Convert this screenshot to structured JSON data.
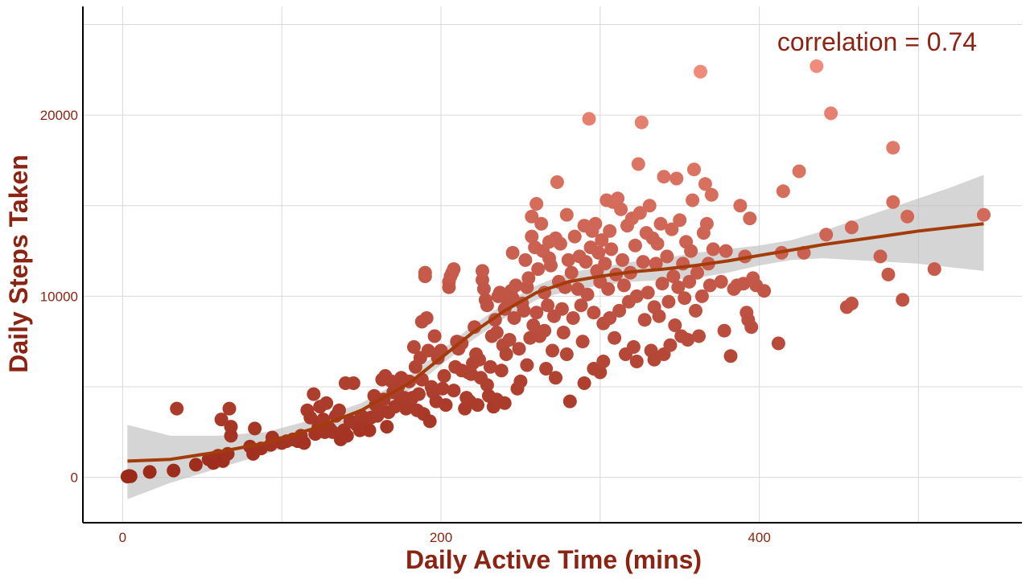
{
  "chart_data": {
    "type": "scatter",
    "title": "",
    "xlabel": "Daily Active Time (mins)",
    "ylabel": "Daily Steps Taken",
    "xlim": [
      -25,
      565
    ],
    "ylim": [
      -2500,
      26000
    ],
    "x_ticks": [
      0,
      200,
      400
    ],
    "y_ticks": [
      0,
      10000,
      20000
    ],
    "grid": true,
    "legend": "none",
    "annotation": "correlation = 0.74",
    "colors": {
      "text": "#8B2412",
      "point_low": "#9C2A1A",
      "point_high": "#F08C7C",
      "trend": "#A33C0A",
      "ribbon": "#BEBEBE",
      "grid": "#D9D9D9",
      "axis": "#000000"
    },
    "points": [
      [
        3,
        50
      ],
      [
        4,
        80
      ],
      [
        5,
        60
      ],
      [
        17,
        300
      ],
      [
        32,
        380
      ],
      [
        34,
        3800
      ],
      [
        46,
        700
      ],
      [
        54,
        1000
      ],
      [
        58,
        1100
      ],
      [
        57,
        800
      ],
      [
        60,
        1200
      ],
      [
        63,
        900
      ],
      [
        62,
        3200
      ],
      [
        66,
        1300
      ],
      [
        68,
        2800
      ],
      [
        68,
        2300
      ],
      [
        67,
        3800
      ],
      [
        80,
        1700
      ],
      [
        82,
        1300
      ],
      [
        83,
        2700
      ],
      [
        87,
        1600
      ],
      [
        93,
        1800
      ],
      [
        94,
        2200
      ],
      [
        100,
        1900
      ],
      [
        103,
        2000
      ],
      [
        107,
        2100
      ],
      [
        110,
        2000
      ],
      [
        112,
        2300
      ],
      [
        114,
        1900
      ],
      [
        116,
        3700
      ],
      [
        118,
        3300
      ],
      [
        120,
        4600
      ],
      [
        121,
        2400
      ],
      [
        123,
        2800
      ],
      [
        124,
        3900
      ],
      [
        126,
        3200
      ],
      [
        128,
        4100
      ],
      [
        127,
        2500
      ],
      [
        130,
        2700
      ],
      [
        132,
        2500
      ],
      [
        134,
        3400
      ],
      [
        136,
        3700
      ],
      [
        137,
        2100
      ],
      [
        139,
        2600
      ],
      [
        140,
        5200
      ],
      [
        141,
        2300
      ],
      [
        143,
        3100
      ],
      [
        145,
        5200
      ],
      [
        147,
        2900
      ],
      [
        149,
        2600
      ],
      [
        150,
        3400
      ],
      [
        152,
        3100
      ],
      [
        153,
        2700
      ],
      [
        155,
        2600
      ],
      [
        156,
        3300
      ],
      [
        158,
        4500
      ],
      [
        159,
        4000
      ],
      [
        160,
        3400
      ],
      [
        161,
        3800
      ],
      [
        163,
        5400
      ],
      [
        164,
        4300
      ],
      [
        165,
        5600
      ],
      [
        166,
        2800
      ],
      [
        167,
        3600
      ],
      [
        169,
        5300
      ],
      [
        170,
        4700
      ],
      [
        171,
        3900
      ],
      [
        172,
        4900
      ],
      [
        173,
        5000
      ],
      [
        174,
        4100
      ],
      [
        175,
        5500
      ],
      [
        176,
        5400
      ],
      [
        177,
        4400
      ],
      [
        178,
        3800
      ],
      [
        180,
        5300
      ],
      [
        181,
        3900
      ],
      [
        182,
        4400
      ],
      [
        183,
        7200
      ],
      [
        184,
        6100
      ],
      [
        185,
        3700
      ],
      [
        186,
        4600
      ],
      [
        187,
        6600
      ],
      [
        188,
        8600
      ],
      [
        188,
        5400
      ],
      [
        189,
        3500
      ],
      [
        190,
        11100
      ],
      [
        190,
        11300
      ],
      [
        191,
        8800
      ],
      [
        192,
        7000
      ],
      [
        193,
        3100
      ],
      [
        194,
        5000
      ],
      [
        195,
        4700
      ],
      [
        196,
        7800
      ],
      [
        197,
        4200
      ],
      [
        198,
        6600
      ],
      [
        200,
        7000
      ],
      [
        201,
        4900
      ],
      [
        202,
        5600
      ],
      [
        203,
        4000
      ],
      [
        205,
        10800
      ],
      [
        205,
        10500
      ],
      [
        206,
        11100
      ],
      [
        207,
        11300
      ],
      [
        208,
        11500
      ],
      [
        208,
        4800
      ],
      [
        209,
        6100
      ],
      [
        210,
        7500
      ],
      [
        211,
        7100
      ],
      [
        213,
        7400
      ],
      [
        213,
        5900
      ],
      [
        215,
        3800
      ],
      [
        216,
        4400
      ],
      [
        217,
        5800
      ],
      [
        218,
        4200
      ],
      [
        219,
        5700
      ],
      [
        220,
        6300
      ],
      [
        221,
        8300
      ],
      [
        222,
        6800
      ],
      [
        223,
        4000
      ],
      [
        224,
        6500
      ],
      [
        225,
        5500
      ],
      [
        226,
        10900
      ],
      [
        226,
        11400
      ],
      [
        227,
        10400
      ],
      [
        228,
        9800
      ],
      [
        229,
        9500
      ],
      [
        229,
        5100
      ],
      [
        230,
        4500
      ],
      [
        231,
        6100
      ],
      [
        232,
        7800
      ],
      [
        233,
        3900
      ],
      [
        234,
        8700
      ],
      [
        235,
        8000
      ],
      [
        235,
        4300
      ],
      [
        236,
        10000
      ],
      [
        237,
        10200
      ],
      [
        238,
        5900
      ],
      [
        239,
        7300
      ],
      [
        240,
        9300
      ],
      [
        240,
        4100
      ],
      [
        241,
        6800
      ],
      [
        242,
        9700
      ],
      [
        243,
        7600
      ],
      [
        244,
        10300
      ],
      [
        245,
        9900
      ],
      [
        245,
        12400
      ],
      [
        246,
        8800
      ],
      [
        247,
        10600
      ],
      [
        248,
        4900
      ],
      [
        249,
        7100
      ],
      [
        250,
        5300
      ],
      [
        251,
        9600
      ],
      [
        252,
        9200
      ],
      [
        253,
        12000
      ],
      [
        254,
        10500
      ],
      [
        254,
        6200
      ],
      [
        255,
        11000
      ],
      [
        256,
        7700
      ],
      [
        257,
        13300
      ],
      [
        257,
        14400
      ],
      [
        258,
        8400
      ],
      [
        259,
        12700
      ],
      [
        260,
        15100
      ],
      [
        260,
        9100
      ],
      [
        261,
        11500
      ],
      [
        262,
        7800
      ],
      [
        263,
        14000
      ],
      [
        264,
        12500
      ],
      [
        265,
        10200
      ],
      [
        265,
        8100
      ],
      [
        266,
        6000
      ],
      [
        267,
        9500
      ],
      [
        268,
        13000
      ],
      [
        268,
        12100
      ],
      [
        269,
        11700
      ],
      [
        270,
        7000
      ],
      [
        271,
        8900
      ],
      [
        272,
        13200
      ],
      [
        272,
        5500
      ],
      [
        273,
        16300
      ],
      [
        274,
        10800
      ],
      [
        275,
        12900
      ],
      [
        276,
        9300
      ],
      [
        277,
        8000
      ],
      [
        278,
        10500
      ],
      [
        279,
        14500
      ],
      [
        279,
        6800
      ],
      [
        280,
        12000
      ],
      [
        281,
        4200
      ],
      [
        282,
        11300
      ],
      [
        283,
        8800
      ],
      [
        284,
        13300
      ],
      [
        286,
        10400
      ],
      [
        287,
        12200
      ],
      [
        288,
        9500
      ],
      [
        289,
        7500
      ],
      [
        290,
        13900
      ],
      [
        290,
        5200
      ],
      [
        291,
        11900
      ],
      [
        292,
        10100
      ],
      [
        293,
        19800
      ],
      [
        294,
        12700
      ],
      [
        295,
        13600
      ],
      [
        296,
        9100
      ],
      [
        296,
        6000
      ],
      [
        297,
        14000
      ],
      [
        298,
        11400
      ],
      [
        299,
        12400
      ],
      [
        300,
        10800
      ],
      [
        300,
        5800
      ],
      [
        301,
        13100
      ],
      [
        302,
        8500
      ],
      [
        302,
        6400
      ],
      [
        303,
        11800
      ],
      [
        304,
        15300
      ],
      [
        305,
        10400
      ],
      [
        306,
        13600
      ],
      [
        306,
        8800
      ],
      [
        307,
        12600
      ],
      [
        308,
        15200
      ],
      [
        309,
        7700
      ],
      [
        310,
        11200
      ],
      [
        311,
        15400
      ],
      [
        312,
        9200
      ],
      [
        313,
        14800
      ],
      [
        314,
        12000
      ],
      [
        315,
        10600
      ],
      [
        316,
        6800
      ],
      [
        317,
        13900
      ],
      [
        318,
        9700
      ],
      [
        319,
        11300
      ],
      [
        320,
        14300
      ],
      [
        321,
        7200
      ],
      [
        322,
        12800
      ],
      [
        323,
        10000
      ],
      [
        323,
        6400
      ],
      [
        324,
        17300
      ],
      [
        325,
        14600
      ],
      [
        326,
        19600
      ],
      [
        327,
        11900
      ],
      [
        328,
        8700
      ],
      [
        329,
        13500
      ],
      [
        330,
        10200
      ],
      [
        331,
        15000
      ],
      [
        332,
        7000
      ],
      [
        333,
        13200
      ],
      [
        334,
        9400
      ],
      [
        334,
        6500
      ],
      [
        335,
        11800
      ],
      [
        336,
        12900
      ],
      [
        337,
        8900
      ],
      [
        338,
        14000
      ],
      [
        339,
        10700
      ],
      [
        340,
        16600
      ],
      [
        340,
        6800
      ],
      [
        342,
        12200
      ],
      [
        343,
        9700
      ],
      [
        344,
        7300
      ],
      [
        345,
        13700
      ],
      [
        346,
        11100
      ],
      [
        347,
        8400
      ],
      [
        348,
        16500
      ],
      [
        349,
        10500
      ],
      [
        350,
        14200
      ],
      [
        351,
        7800
      ],
      [
        352,
        11800
      ],
      [
        353,
        9900
      ],
      [
        354,
        13000
      ],
      [
        355,
        7600
      ],
      [
        356,
        10800
      ],
      [
        357,
        12500
      ],
      [
        358,
        15300
      ],
      [
        359,
        17000
      ],
      [
        360,
        9200
      ],
      [
        361,
        11300
      ],
      [
        362,
        7800
      ],
      [
        363,
        22400
      ],
      [
        364,
        10000
      ],
      [
        365,
        13500
      ],
      [
        366,
        16200
      ],
      [
        367,
        14000
      ],
      [
        368,
        11800
      ],
      [
        369,
        10600
      ],
      [
        370,
        15600
      ],
      [
        371,
        12600
      ],
      [
        376,
        10800
      ],
      [
        378,
        8100
      ],
      [
        379,
        12500
      ],
      [
        382,
        6700
      ],
      [
        384,
        10400
      ],
      [
        386,
        10600
      ],
      [
        388,
        15000
      ],
      [
        390,
        10700
      ],
      [
        391,
        12200
      ],
      [
        392,
        9100
      ],
      [
        393,
        8700
      ],
      [
        394,
        14300
      ],
      [
        395,
        8300
      ],
      [
        396,
        11000
      ],
      [
        398,
        10600
      ],
      [
        403,
        10300
      ],
      [
        412,
        7400
      ],
      [
        414,
        12400
      ],
      [
        415,
        15800
      ],
      [
        425,
        16900
      ],
      [
        428,
        12400
      ],
      [
        436,
        22700
      ],
      [
        442,
        13400
      ],
      [
        445,
        20100
      ],
      [
        455,
        9400
      ],
      [
        458,
        9600
      ],
      [
        458,
        13800
      ],
      [
        476,
        12200
      ],
      [
        481,
        11200
      ],
      [
        484,
        15200
      ],
      [
        484,
        18200
      ],
      [
        490,
        9800
      ],
      [
        493,
        14400
      ],
      [
        510,
        11500
      ],
      [
        541,
        14500
      ]
    ],
    "trend": {
      "x": [
        3,
        30,
        60,
        90,
        120,
        150,
        180,
        200,
        220,
        240,
        260,
        280,
        300,
        320,
        340,
        360,
        380,
        400,
        420,
        440,
        460,
        480,
        500,
        520,
        541
      ],
      "y": [
        900,
        1000,
        1400,
        1900,
        2700,
        3700,
        5200,
        6600,
        8000,
        9200,
        10200,
        10800,
        11100,
        11350,
        11500,
        11700,
        11950,
        12250,
        12550,
        12850,
        13100,
        13350,
        13600,
        13800,
        14000
      ],
      "lower": [
        -1200,
        -300,
        500,
        1300,
        2200,
        3300,
        4800,
        6200,
        7600,
        8800,
        9800,
        10300,
        10600,
        10800,
        10900,
        11000,
        11300,
        11700,
        12000,
        12100,
        12000,
        11900,
        11800,
        11600,
        11400
      ],
      "upper": [
        2900,
        2300,
        2300,
        2500,
        3200,
        4100,
        5600,
        7000,
        8400,
        9600,
        10600,
        11300,
        11600,
        11900,
        12100,
        12400,
        12600,
        12800,
        13100,
        13600,
        14200,
        14800,
        15400,
        16000,
        16700
      ]
    }
  }
}
